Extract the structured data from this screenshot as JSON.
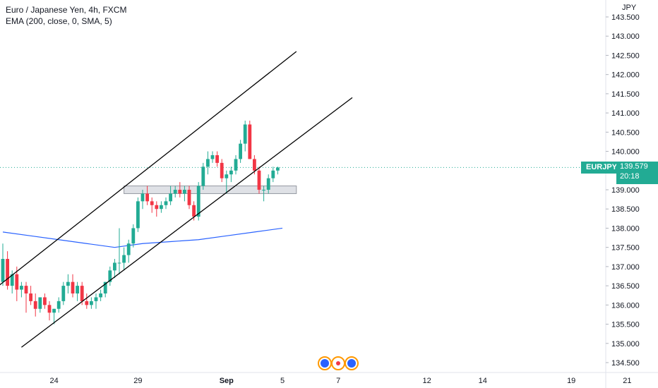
{
  "legend": {
    "title": "Euro / Japanese Yen, 4h, FXCM",
    "indicator": "EMA (200, close, 0, SMA, 5)"
  },
  "currency": "JPY",
  "symbol": "EURJPY",
  "last_price": "139.579",
  "countdown": "20:18",
  "colors": {
    "up": "#22ab94",
    "down": "#f23645",
    "ema": "#2962ff",
    "channel": "#000000",
    "zone": "#d1d4dc",
    "price_line": "#22ab94"
  },
  "chart_data": {
    "type": "candlestick",
    "title": "Euro / Japanese Yen, 4h, FXCM",
    "ylim": [
      134.3,
      143.6
    ],
    "y_ticks": [
      "134.500",
      "135.000",
      "135.500",
      "136.000",
      "136.500",
      "137.000",
      "137.500",
      "138.000",
      "138.500",
      "139.000",
      "139.500",
      "140.000",
      "140.500",
      "141.000",
      "141.500",
      "142.000",
      "142.500",
      "143.000",
      "143.500"
    ],
    "x_ticks": [
      {
        "label": "24",
        "bar": 11
      },
      {
        "label": "29",
        "bar": 29
      },
      {
        "label": "Sep",
        "bar": 48
      },
      {
        "label": "5",
        "bar": 60
      },
      {
        "label": "7",
        "bar": 72
      },
      {
        "label": "12",
        "bar": 91
      },
      {
        "label": "14",
        "bar": 103
      },
      {
        "label": "19",
        "bar": 122
      },
      {
        "label": "21",
        "bar": 134
      }
    ],
    "candles": [
      [
        136.6,
        137.6,
        136.5,
        137.2
      ],
      [
        137.2,
        137.4,
        136.4,
        136.5
      ],
      [
        136.5,
        136.9,
        136.3,
        136.8
      ],
      [
        136.8,
        137.0,
        136.1,
        136.4
      ],
      [
        136.4,
        136.6,
        136.2,
        136.5
      ],
      [
        136.5,
        136.6,
        135.8,
        136.3
      ],
      [
        136.3,
        136.5,
        136.0,
        136.1
      ],
      [
        136.1,
        136.3,
        135.7,
        135.9
      ],
      [
        135.9,
        136.2,
        135.8,
        136.2
      ],
      [
        136.2,
        136.3,
        135.9,
        136.0
      ],
      [
        136.0,
        136.1,
        135.6,
        135.8
      ],
      [
        135.8,
        135.9,
        135.5,
        135.9
      ],
      [
        135.9,
        136.2,
        135.8,
        136.1
      ],
      [
        136.1,
        136.6,
        136.0,
        136.5
      ],
      [
        136.5,
        136.8,
        136.3,
        136.6
      ],
      [
        136.6,
        136.8,
        136.2,
        136.3
      ],
      [
        136.3,
        136.6,
        136.1,
        136.5
      ],
      [
        136.5,
        136.6,
        136.0,
        136.1
      ],
      [
        136.1,
        136.3,
        135.9,
        136.0
      ],
      [
        136.0,
        136.2,
        135.9,
        136.1
      ],
      [
        136.1,
        136.3,
        135.9,
        136.2
      ],
      [
        136.2,
        136.4,
        136.1,
        136.3
      ],
      [
        136.3,
        136.6,
        136.2,
        136.6
      ],
      [
        136.6,
        137.0,
        136.5,
        136.9
      ],
      [
        136.9,
        137.2,
        136.7,
        137.1
      ],
      [
        137.1,
        138.0,
        136.8,
        137.1
      ],
      [
        137.1,
        137.5,
        136.9,
        137.3
      ],
      [
        137.3,
        137.7,
        137.1,
        137.6
      ],
      [
        137.6,
        138.1,
        137.5,
        138.0
      ],
      [
        138.0,
        138.8,
        137.9,
        138.7
      ],
      [
        138.7,
        139.0,
        138.5,
        138.9
      ],
      [
        138.9,
        139.1,
        138.6,
        138.7
      ],
      [
        138.7,
        138.8,
        138.4,
        138.6
      ],
      [
        138.6,
        138.7,
        138.3,
        138.5
      ],
      [
        138.5,
        138.7,
        138.4,
        138.6
      ],
      [
        138.6,
        138.8,
        138.5,
        138.7
      ],
      [
        138.7,
        139.1,
        138.6,
        138.9
      ],
      [
        138.9,
        139.1,
        138.8,
        139.0
      ],
      [
        139.0,
        139.2,
        138.8,
        138.9
      ],
      [
        138.9,
        139.1,
        138.7,
        139.0
      ],
      [
        139.0,
        139.1,
        138.5,
        138.6
      ],
      [
        138.6,
        138.7,
        138.2,
        138.3
      ],
      [
        138.3,
        139.2,
        138.2,
        139.1
      ],
      [
        139.1,
        139.7,
        139.0,
        139.6
      ],
      [
        139.6,
        140.0,
        139.4,
        139.8
      ],
      [
        139.8,
        140.0,
        139.7,
        139.9
      ],
      [
        139.9,
        140.0,
        139.6,
        139.7
      ],
      [
        139.7,
        139.8,
        139.2,
        139.3
      ],
      [
        139.3,
        139.5,
        138.9,
        139.4
      ],
      [
        139.4,
        139.6,
        139.2,
        139.5
      ],
      [
        139.5,
        139.9,
        139.4,
        139.8
      ],
      [
        139.8,
        140.3,
        139.7,
        140.2
      ],
      [
        140.2,
        140.8,
        140.0,
        140.7
      ],
      [
        140.7,
        140.8,
        139.8,
        139.8
      ],
      [
        139.8,
        139.9,
        139.4,
        139.5
      ],
      [
        139.5,
        139.6,
        138.9,
        139.0
      ],
      [
        139.0,
        139.1,
        138.7,
        139.0
      ],
      [
        139.0,
        139.4,
        138.9,
        139.3
      ],
      [
        139.3,
        139.6,
        139.2,
        139.5
      ],
      [
        139.5,
        139.6,
        139.4,
        139.58
      ]
    ],
    "ema": [
      [
        0,
        137.9
      ],
      [
        6,
        137.8
      ],
      [
        12,
        137.7
      ],
      [
        18,
        137.6
      ],
      [
        24,
        137.5
      ],
      [
        30,
        137.6
      ],
      [
        36,
        137.65
      ],
      [
        42,
        137.7
      ],
      [
        48,
        137.8
      ],
      [
        54,
        137.9
      ],
      [
        60,
        138.0
      ]
    ],
    "channel_lines": [
      {
        "from": [
          -3,
          136.3
        ],
        "to": [
          63,
          142.6
        ]
      },
      {
        "from": [
          4,
          134.9
        ],
        "to": [
          75,
          141.4
        ]
      }
    ],
    "support_zone": {
      "from_bar": 26,
      "to_bar": 63,
      "low": 138.9,
      "high": 139.1
    }
  }
}
